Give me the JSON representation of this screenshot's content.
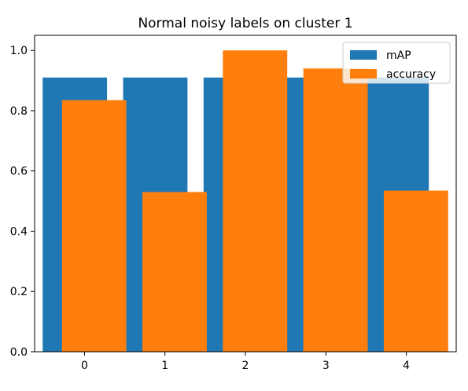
{
  "chart_data": {
    "type": "bar",
    "title": "Normal noisy labels on cluster 1",
    "xlabel": "",
    "ylabel": "",
    "categories": [
      "0",
      "1",
      "2",
      "3",
      "4"
    ],
    "x_values": [
      0,
      1,
      2,
      3,
      4
    ],
    "xlim": [
      -0.62,
      4.62
    ],
    "ylim": [
      0.0,
      1.05
    ],
    "yticks": [
      0.0,
      0.2,
      0.4,
      0.6,
      0.8,
      1.0
    ],
    "ytick_labels": [
      "0.0",
      "0.2",
      "0.4",
      "0.6",
      "0.8",
      "1.0"
    ],
    "grid": false,
    "legend_position": "top-right",
    "series": [
      {
        "name": "mAP",
        "color": "#1f77b4",
        "bar_width": 0.8,
        "offset": -0.12,
        "values": [
          0.91,
          0.91,
          0.91,
          0.91,
          0.91
        ]
      },
      {
        "name": "accuracy",
        "color": "#ff7f0e",
        "bar_width": 0.8,
        "offset": 0.12,
        "values": [
          0.835,
          0.53,
          1.0,
          0.94,
          0.535
        ]
      }
    ]
  }
}
